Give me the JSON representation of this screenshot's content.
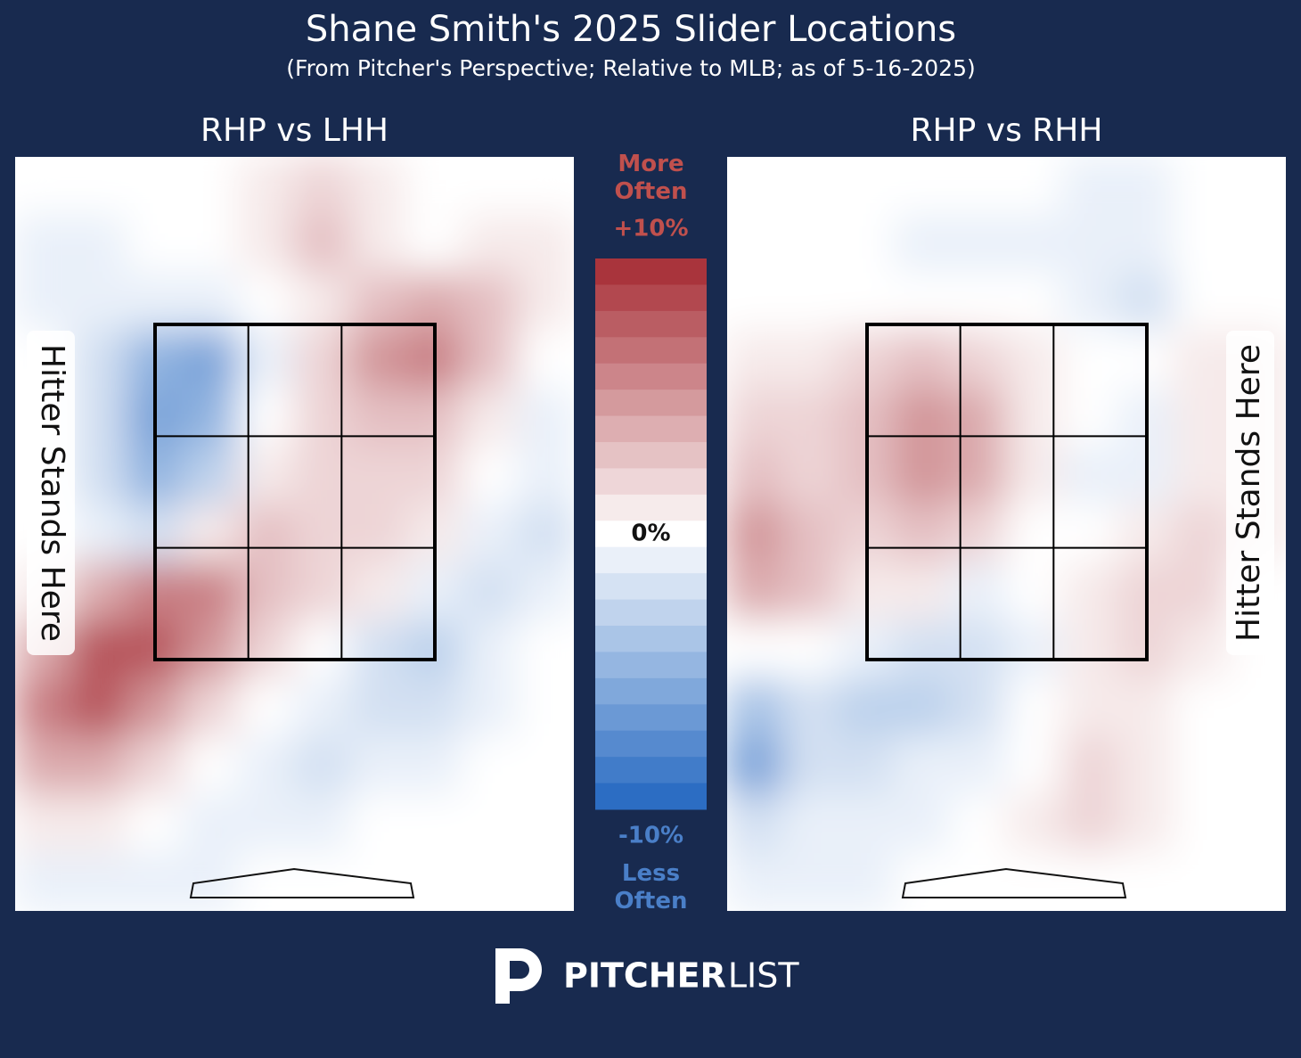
{
  "chart_data": {
    "type": "heatmap",
    "title": "Shane Smith's 2025 Slider Locations",
    "subtitle": "(From Pitcher's Perspective; Relative to MLB; as of 5-16-2025)",
    "panels": [
      {
        "title": "RHP vs LHH",
        "side_label": "Hitter Stands Here",
        "side": "left",
        "values": [
          [
            0,
            0,
            0,
            0,
            1,
            2,
            1,
            0,
            0,
            0
          ],
          [
            -1,
            -1,
            0,
            0,
            1,
            3,
            1,
            0,
            1,
            1
          ],
          [
            -1,
            -1,
            -1,
            -1,
            0,
            1,
            3,
            4,
            3,
            1
          ],
          [
            0,
            -2,
            -5,
            -6,
            -1,
            2,
            5,
            6,
            3,
            0
          ],
          [
            0,
            -2,
            -6,
            -5,
            0,
            2,
            3,
            3,
            1,
            -1
          ],
          [
            0,
            -2,
            -5,
            -3,
            1,
            2,
            2,
            2,
            0,
            -1
          ],
          [
            0,
            -1,
            -2,
            1,
            3,
            2,
            2,
            1,
            -1,
            -2
          ],
          [
            1,
            4,
            6,
            6,
            3,
            2,
            1,
            -1,
            -2,
            -1
          ],
          [
            4,
            8,
            8,
            5,
            2,
            0,
            -2,
            -3,
            -1,
            0
          ],
          [
            6,
            8,
            5,
            2,
            0,
            -1,
            -2,
            -2,
            -1,
            0
          ],
          [
            4,
            4,
            2,
            0,
            -1,
            -2,
            -1,
            -1,
            0,
            0
          ],
          [
            1,
            1,
            0,
            -1,
            -1,
            -1,
            0,
            0,
            0,
            0
          ],
          [
            -1,
            -1,
            -1,
            -1,
            0,
            0,
            0,
            0,
            0,
            0
          ]
        ]
      },
      {
        "title": "RHP vs RHH",
        "side_label": "Hitter Stands Here",
        "side": "right",
        "values": [
          [
            0,
            0,
            0,
            0,
            0,
            0,
            -1,
            -1,
            0,
            0
          ],
          [
            0,
            0,
            0,
            -1,
            -1,
            -1,
            -1,
            -1,
            0,
            0
          ],
          [
            0,
            0,
            0,
            0,
            0,
            0,
            -1,
            -2,
            0,
            0
          ],
          [
            1,
            1,
            2,
            3,
            2,
            1,
            0,
            0,
            1,
            1
          ],
          [
            2,
            2,
            3,
            5,
            4,
            1,
            0,
            -1,
            1,
            1
          ],
          [
            3,
            2,
            3,
            5,
            4,
            1,
            -1,
            -1,
            1,
            1
          ],
          [
            5,
            3,
            2,
            3,
            2,
            0,
            0,
            1,
            2,
            1
          ],
          [
            4,
            3,
            1,
            1,
            -1,
            0,
            1,
            2,
            2,
            0
          ],
          [
            0,
            0,
            -1,
            -2,
            -2,
            -1,
            1,
            2,
            1,
            0
          ],
          [
            -4,
            -2,
            -3,
            -3,
            -2,
            0,
            1,
            1,
            0,
            0
          ],
          [
            -6,
            -2,
            -2,
            -1,
            -1,
            0,
            2,
            1,
            0,
            0
          ],
          [
            -2,
            -1,
            -1,
            -1,
            0,
            1,
            2,
            1,
            0,
            0
          ],
          [
            -1,
            -1,
            -1,
            0,
            0,
            0,
            0,
            0,
            0,
            0
          ]
        ]
      }
    ],
    "colorbar": {
      "top_label": "More Often",
      "bottom_label": "Less Often",
      "lim": [
        -10,
        10
      ],
      "ticks": [
        {
          "value": 10,
          "label": "+10%"
        },
        {
          "value": 0,
          "label": "0%"
        },
        {
          "value": -10,
          "label": "-10%"
        }
      ],
      "colors": [
        "#2166c0",
        "#ffffff",
        "#a52a32"
      ]
    },
    "brand": {
      "bold": "PITCHER",
      "light": "LIST"
    }
  }
}
